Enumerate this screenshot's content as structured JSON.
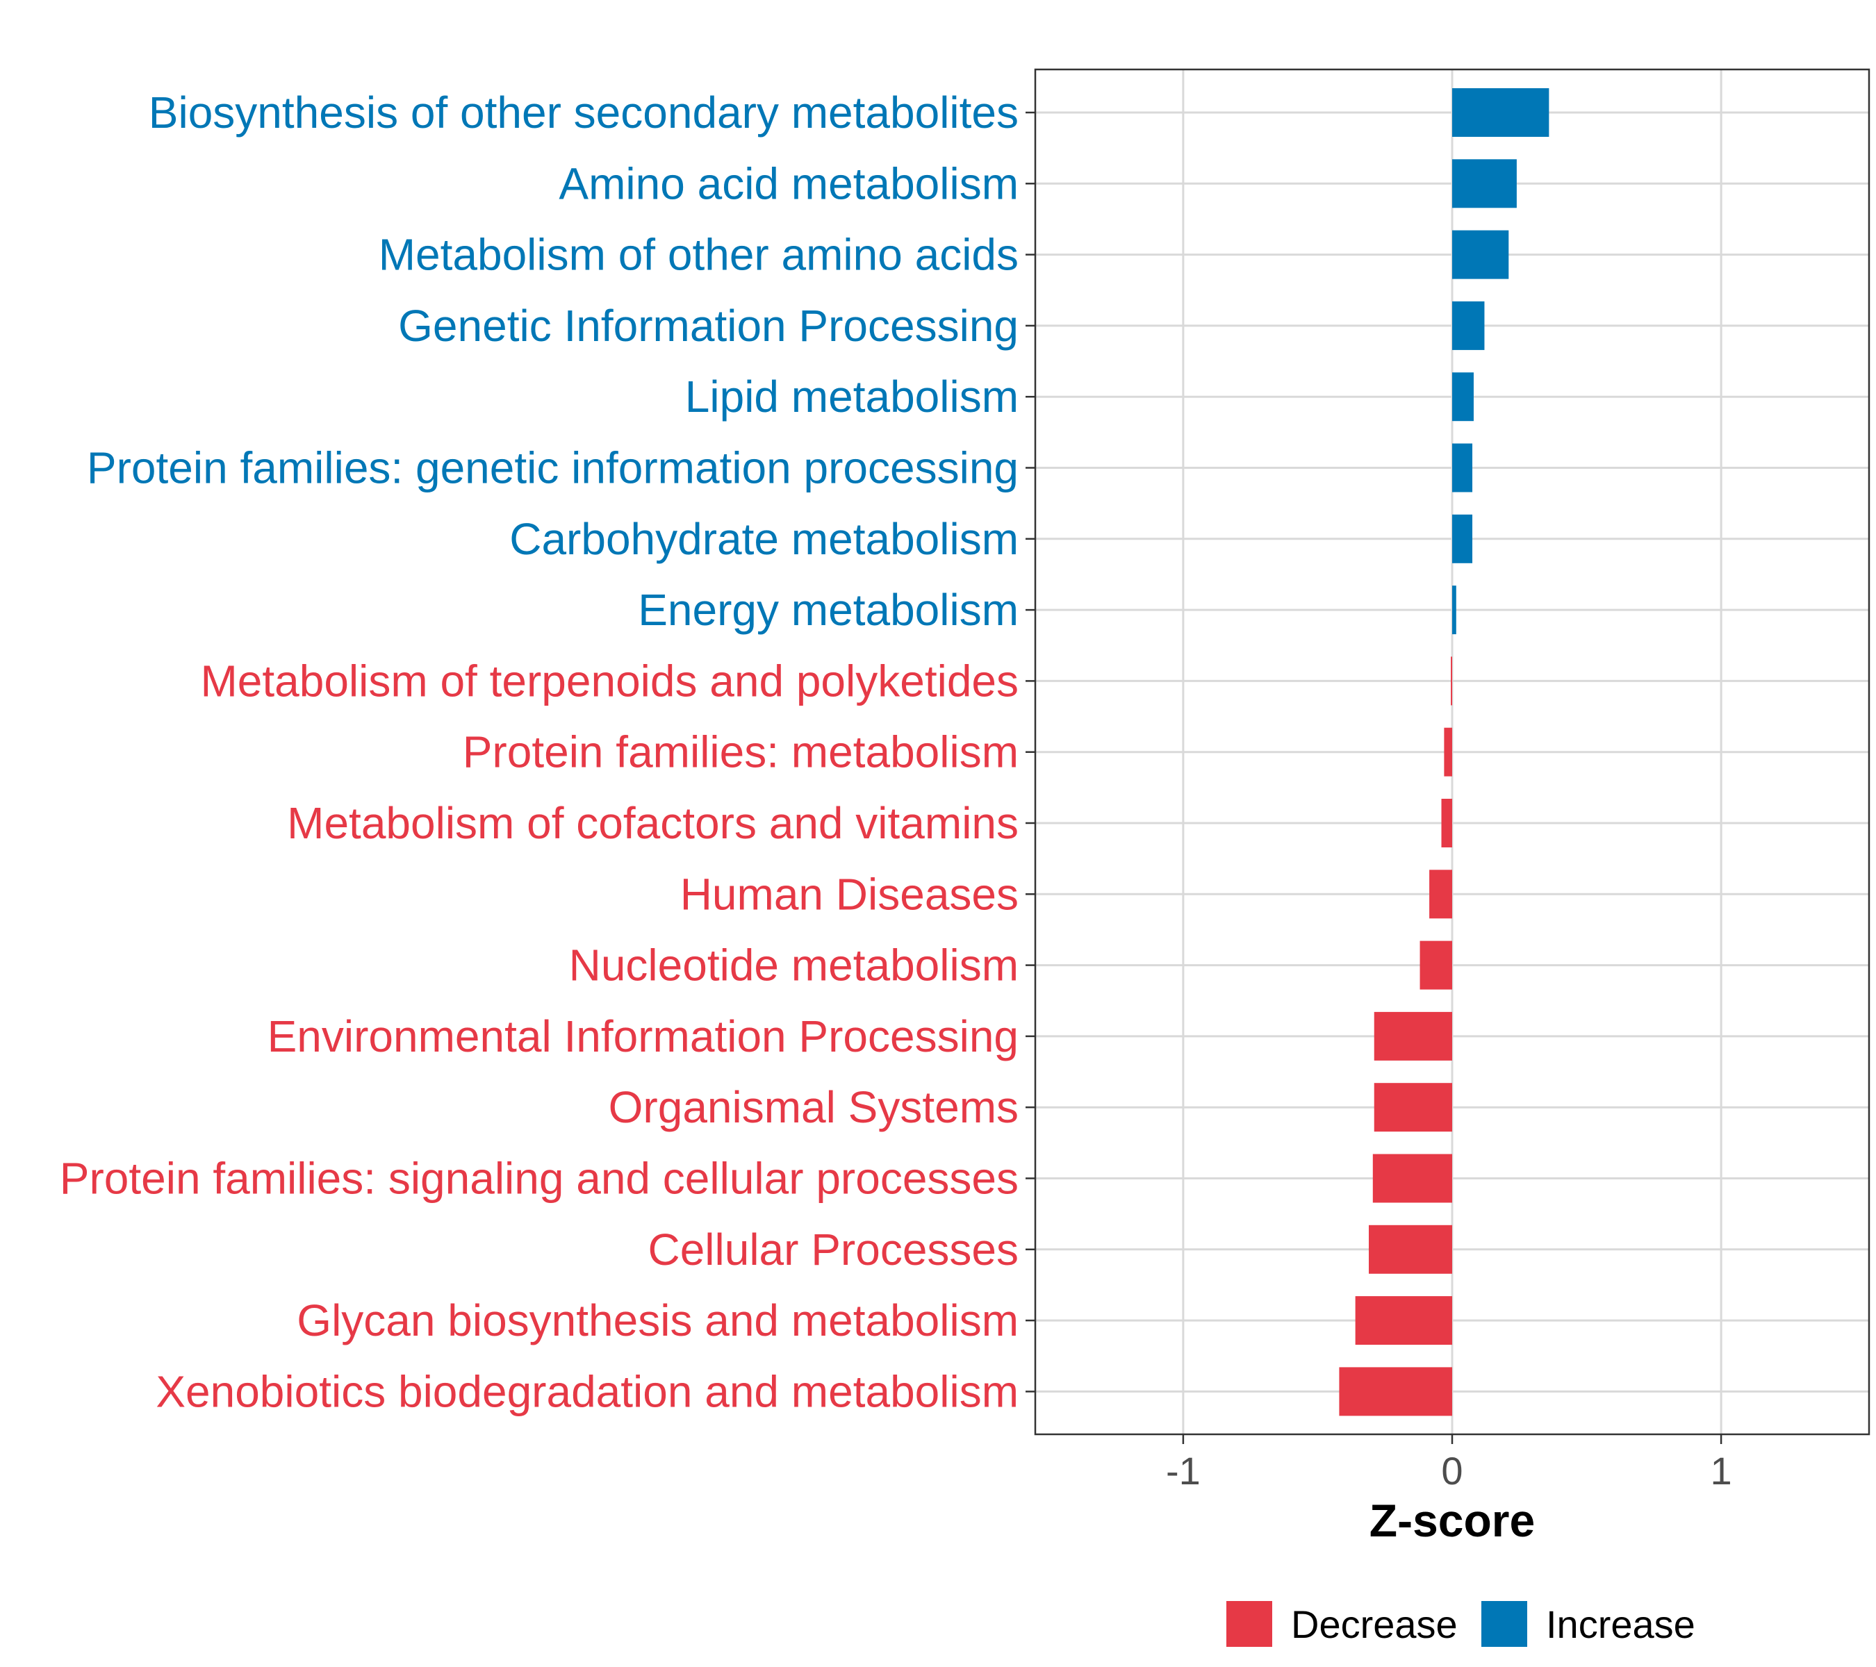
{
  "chart_data": {
    "type": "bar",
    "orientation": "horizontal",
    "title": "",
    "xlabel": "Z-score",
    "ylabel": "",
    "xlim": [
      -1.55,
      1.55
    ],
    "x_ticks": [
      -1,
      0,
      1
    ],
    "x_tick_labels": [
      "-1",
      "0",
      "1"
    ],
    "grid": true,
    "legend_position": "bottom",
    "colors": {
      "Decrease": "#e63946",
      "Increase": "#0077b6"
    },
    "legend": [
      {
        "key": "Decrease",
        "label": "Decrease"
      },
      {
        "key": "Increase",
        "label": "Increase"
      }
    ],
    "categories": [
      "Biosynthesis of other secondary metabolites",
      "Amino acid metabolism",
      "Metabolism of other amino acids",
      "Genetic Information Processing",
      "Lipid metabolism",
      "Protein families: genetic information processing",
      "Carbohydrate metabolism",
      "Energy metabolism",
      "Metabolism of terpenoids and polyketides",
      "Protein families: metabolism",
      "Metabolism of cofactors and vitamins",
      "Human Diseases",
      "Nucleotide metabolism",
      "Environmental Information Processing",
      "Organismal Systems",
      "Protein families: signaling and cellular processes",
      "Cellular Processes",
      "Glycan biosynthesis and metabolism",
      "Xenobiotics biodegradation and metabolism"
    ],
    "values": [
      0.36,
      0.24,
      0.21,
      0.12,
      0.08,
      0.075,
      0.075,
      0.015,
      -0.005,
      -0.03,
      -0.04,
      -0.085,
      -0.12,
      -0.29,
      -0.29,
      -0.295,
      -0.31,
      -0.36,
      -0.42
    ],
    "groups": [
      "Increase",
      "Increase",
      "Increase",
      "Increase",
      "Increase",
      "Increase",
      "Increase",
      "Increase",
      "Decrease",
      "Decrease",
      "Decrease",
      "Decrease",
      "Decrease",
      "Decrease",
      "Decrease",
      "Decrease",
      "Decrease",
      "Decrease",
      "Decrease"
    ]
  }
}
